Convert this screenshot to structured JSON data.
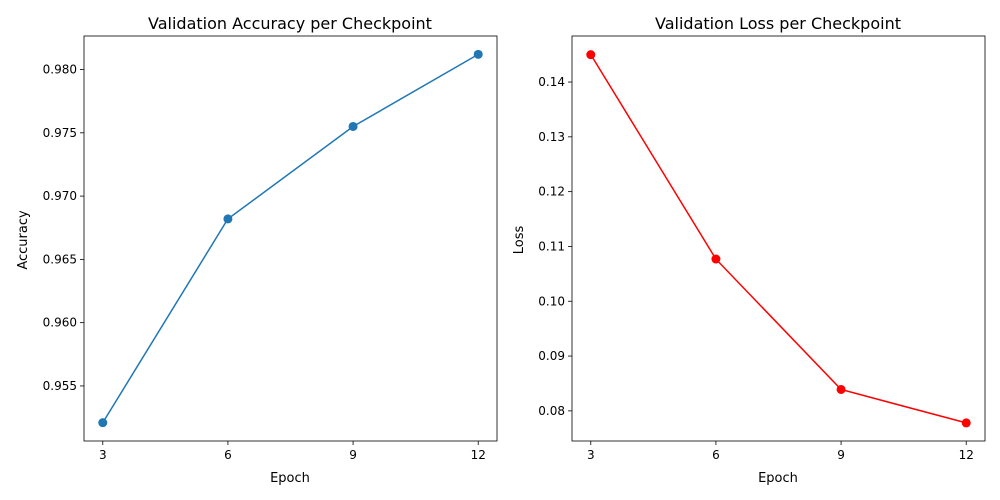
{
  "chart_data": [
    {
      "type": "line",
      "title": "Validation Accuracy per Checkpoint",
      "xlabel": "Epoch",
      "ylabel": "Accuracy",
      "x": [
        3,
        6,
        9,
        12
      ],
      "x_ticks": [
        3,
        6,
        9,
        12
      ],
      "y_ticks": [
        0.955,
        0.96,
        0.965,
        0.97,
        0.975,
        0.98
      ],
      "y_tick_labels": [
        "0.955",
        "0.960",
        "0.965",
        "0.970",
        "0.975",
        "0.980"
      ],
      "xlim": [
        2.55,
        12.45
      ],
      "ylim": [
        0.95065,
        0.98265
      ],
      "grid": false,
      "series": [
        {
          "values": [
            0.9521,
            0.9682,
            0.9755,
            0.9812
          ],
          "color": "#1f77b4",
          "marker": "circle"
        }
      ]
    },
    {
      "type": "line",
      "title": "Validation Loss per Checkpoint",
      "xlabel": "Epoch",
      "ylabel": "Loss",
      "x": [
        3,
        6,
        9,
        12
      ],
      "x_ticks": [
        3,
        6,
        9,
        12
      ],
      "y_ticks": [
        0.08,
        0.09,
        0.1,
        0.11,
        0.12,
        0.13,
        0.14
      ],
      "y_tick_labels": [
        "0.08",
        "0.09",
        "0.10",
        "0.11",
        "0.12",
        "0.13",
        "0.14"
      ],
      "xlim": [
        2.55,
        12.45
      ],
      "ylim": [
        0.0745,
        0.1484
      ],
      "grid": false,
      "series": [
        {
          "values": [
            0.145,
            0.1077,
            0.0839,
            0.0778
          ],
          "color": "#ff0000",
          "marker": "circle"
        }
      ]
    }
  ]
}
